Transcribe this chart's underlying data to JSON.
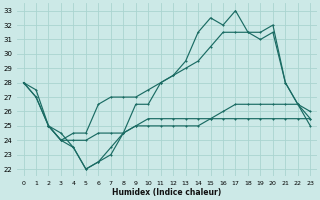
{
  "xlabel": "Humidex (Indice chaleur)",
  "xlim": [
    -0.5,
    23.5
  ],
  "ylim": [
    21.5,
    33.5
  ],
  "xticks": [
    0,
    1,
    2,
    3,
    4,
    5,
    6,
    7,
    8,
    9,
    10,
    11,
    12,
    13,
    14,
    15,
    16,
    17,
    18,
    19,
    20,
    21,
    22,
    23
  ],
  "yticks": [
    22,
    23,
    24,
    25,
    26,
    27,
    28,
    29,
    30,
    31,
    32,
    33
  ],
  "bg_color": "#cce9e7",
  "grid_color": "#aad4d0",
  "line_color": "#1a6b63",
  "line1_x": [
    0,
    1,
    2,
    3,
    4,
    5,
    6,
    7,
    8,
    9,
    10,
    11,
    12,
    13,
    14,
    15,
    16,
    17,
    18,
    19,
    20,
    21,
    22,
    23
  ],
  "line1_y": [
    28.0,
    27.5,
    25.0,
    24.5,
    23.5,
    22.0,
    22.5,
    23.5,
    24.5,
    26.5,
    26.5,
    28.0,
    28.5,
    29.5,
    31.5,
    32.5,
    32.0,
    33.0,
    31.5,
    31.0,
    31.5,
    28.0,
    26.5,
    25.5
  ],
  "line2_x": [
    0,
    1,
    2,
    3,
    4,
    5,
    6,
    7,
    8,
    9,
    10,
    11,
    12,
    13,
    14,
    15,
    16,
    17,
    18,
    19,
    20,
    21,
    22,
    23
  ],
  "line2_y": [
    28.0,
    27.0,
    25.0,
    24.0,
    24.5,
    24.5,
    26.5,
    27.0,
    27.0,
    27.0,
    27.5,
    28.0,
    28.5,
    29.0,
    29.5,
    30.5,
    31.5,
    31.5,
    31.5,
    31.5,
    32.0,
    28.0,
    26.5,
    25.0
  ],
  "line3_x": [
    0,
    1,
    2,
    3,
    4,
    5,
    6,
    7,
    8,
    9,
    10,
    11,
    12,
    13,
    14,
    15,
    16,
    17,
    18,
    19,
    20,
    21,
    22,
    23
  ],
  "line3_y": [
    28.0,
    27.0,
    25.0,
    24.0,
    24.0,
    24.0,
    24.5,
    24.5,
    24.5,
    25.0,
    25.0,
    25.0,
    25.0,
    25.0,
    25.0,
    25.5,
    25.5,
    25.5,
    25.5,
    25.5,
    25.5,
    25.5,
    25.5,
    25.5
  ],
  "line4_x": [
    2,
    3,
    4,
    5,
    6,
    7,
    8,
    9,
    10,
    11,
    12,
    13,
    14,
    15,
    16,
    17,
    18,
    19,
    20,
    21,
    22,
    23
  ],
  "line4_y": [
    25.0,
    24.0,
    23.5,
    22.0,
    22.5,
    23.0,
    24.5,
    25.0,
    25.5,
    25.5,
    25.5,
    25.5,
    25.5,
    25.5,
    26.0,
    26.5,
    26.5,
    26.5,
    26.5,
    26.5,
    26.5,
    26.0
  ]
}
